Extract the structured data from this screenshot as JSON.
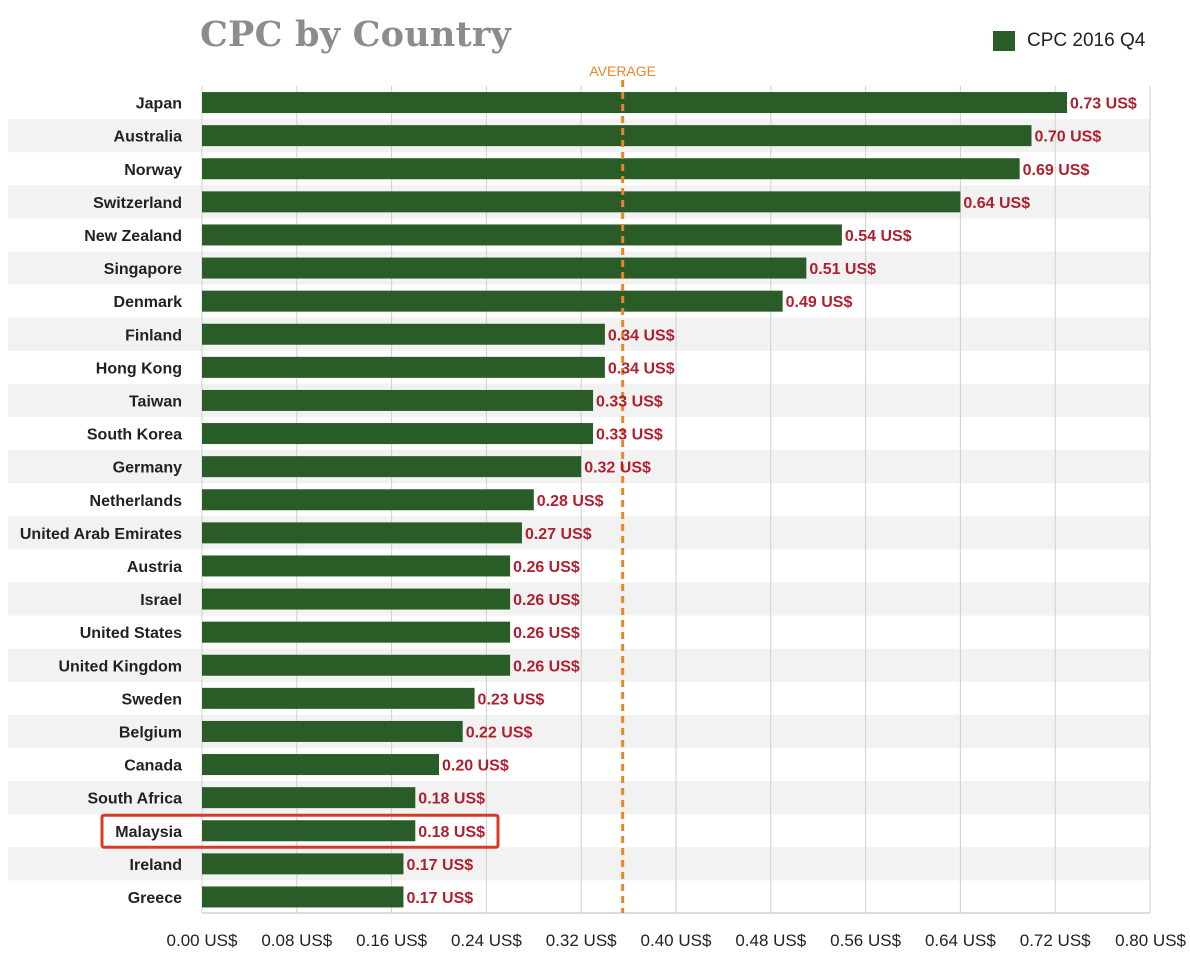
{
  "chart_data": {
    "type": "bar",
    "orientation": "horizontal",
    "title": "CPC by Country",
    "xlabel": "",
    "ylabel": "",
    "categories": [
      "Japan",
      "Australia",
      "Norway",
      "Switzerland",
      "New Zealand",
      "Singapore",
      "Denmark",
      "Finland",
      "Hong Kong",
      "Taiwan",
      "South Korea",
      "Germany",
      "Netherlands",
      "United Arab Emirates",
      "Austria",
      "Israel",
      "United States",
      "United Kingdom",
      "Sweden",
      "Belgium",
      "Canada",
      "South Africa",
      "Malaysia",
      "Ireland",
      "Greece"
    ],
    "series": [
      {
        "name": "CPC 2016 Q4",
        "values": [
          0.73,
          0.7,
          0.69,
          0.64,
          0.54,
          0.51,
          0.49,
          0.34,
          0.34,
          0.33,
          0.33,
          0.32,
          0.28,
          0.27,
          0.26,
          0.26,
          0.26,
          0.26,
          0.23,
          0.22,
          0.2,
          0.18,
          0.18,
          0.17,
          0.17
        ],
        "labels": [
          "0.73 US$",
          "0.70 US$",
          "0.69 US$",
          "0.64 US$",
          "0.54 US$",
          "0.51 US$",
          "0.49 US$",
          "0.34 US$",
          "0.34 US$",
          "0.33 US$",
          "0.33 US$",
          "0.32 US$",
          "0.28 US$",
          "0.27 US$",
          "0.26 US$",
          "0.26 US$",
          "0.26 US$",
          "0.26 US$",
          "0.23 US$",
          "0.22 US$",
          "0.20 US$",
          "0.18 US$",
          "0.18 US$",
          "0.17 US$",
          "0.17 US$"
        ]
      }
    ],
    "xlim": [
      0,
      0.8
    ],
    "xticks": [
      0,
      0.08,
      0.16,
      0.24,
      0.32,
      0.4,
      0.48,
      0.56,
      0.64,
      0.72,
      0.8
    ],
    "xtick_labels": [
      "0.00 US$",
      "0.08 US$",
      "0.16 US$",
      "0.24 US$",
      "0.32 US$",
      "0.40 US$",
      "0.48 US$",
      "0.56 US$",
      "0.64 US$",
      "0.72 US$",
      "0.80 US$"
    ],
    "grid": true,
    "legend_position": "top-right",
    "reference_line": {
      "label": "AVERAGE",
      "value": 0.355,
      "style": "dashed"
    },
    "highlight": {
      "category": "Malaysia",
      "style": "boxed"
    },
    "colors": {
      "bar": "#2a5c28",
      "value_label": "#b01f2e",
      "reference_line": "#e8862a",
      "highlight_box": "#d63a2a",
      "row_band": "#f2f2f2",
      "grid": "#cfcfcf"
    }
  }
}
